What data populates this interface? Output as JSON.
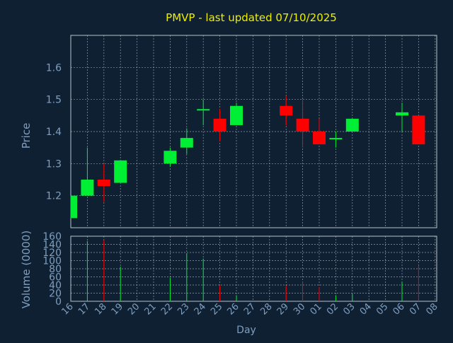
{
  "chart_data": [
    {
      "type": "candlestick",
      "title": "PMVP - last updated 07/10/2025",
      "ylabel": "Price",
      "ylim": [
        1.1,
        1.7
      ],
      "yticks": [
        1.2,
        1.3,
        1.4,
        1.5,
        1.6
      ],
      "grid": true,
      "x": [
        "16",
        "17",
        "18",
        "19",
        "20",
        "21",
        "22",
        "23",
        "24",
        "25",
        "26",
        "27",
        "28",
        "29",
        "30",
        "01",
        "02",
        "03",
        "04",
        "05",
        "06",
        "07",
        "08"
      ],
      "candles": [
        {
          "day": "16",
          "open": 1.13,
          "high": 1.2,
          "low": 1.13,
          "close": 1.2
        },
        {
          "day": "17",
          "open": 1.2,
          "high": 1.35,
          "low": 1.2,
          "close": 1.25
        },
        {
          "day": "18",
          "open": 1.25,
          "high": 1.3,
          "low": 1.18,
          "close": 1.23
        },
        {
          "day": "19",
          "open": 1.24,
          "high": 1.31,
          "low": 1.24,
          "close": 1.31
        },
        {
          "day": "22",
          "open": 1.3,
          "high": 1.35,
          "low": 1.29,
          "close": 1.34
        },
        {
          "day": "23",
          "open": 1.35,
          "high": 1.41,
          "low": 1.33,
          "close": 1.38
        },
        {
          "day": "24",
          "open": 1.47,
          "high": 1.5,
          "low": 1.42,
          "close": 1.47
        },
        {
          "day": "25",
          "open": 1.44,
          "high": 1.47,
          "low": 1.37,
          "close": 1.4
        },
        {
          "day": "26",
          "open": 1.42,
          "high": 1.49,
          "low": 1.42,
          "close": 1.48
        },
        {
          "day": "29",
          "open": 1.48,
          "high": 1.51,
          "low": 1.42,
          "close": 1.45
        },
        {
          "day": "30",
          "open": 1.44,
          "high": 1.5,
          "low": 1.35,
          "close": 1.4
        },
        {
          "day": "01",
          "open": 1.4,
          "high": 1.44,
          "low": 1.36,
          "close": 1.36
        },
        {
          "day": "02",
          "open": 1.38,
          "high": 1.4,
          "low": 1.35,
          "close": 1.38
        },
        {
          "day": "03",
          "open": 1.4,
          "high": 1.44,
          "low": 1.4,
          "close": 1.44
        },
        {
          "day": "06",
          "open": 1.45,
          "high": 1.49,
          "low": 1.4,
          "close": 1.46
        },
        {
          "day": "07",
          "open": 1.45,
          "high": 1.45,
          "low": 1.36,
          "close": 1.36
        }
      ],
      "colors": {
        "up": "#00ee33",
        "down": "#ff0000",
        "background": "#0f2033",
        "grid": "#b9c3cd",
        "text": "#7f9fbf",
        "title": "#eeee00"
      }
    },
    {
      "type": "bar",
      "ylabel": "Volume (0000)",
      "xlabel": "Day",
      "ylim": [
        0,
        160
      ],
      "yticks": [
        0,
        20,
        40,
        60,
        80,
        100,
        120,
        140,
        160
      ],
      "grid": true,
      "x": [
        "16",
        "17",
        "18",
        "19",
        "20",
        "21",
        "22",
        "23",
        "24",
        "25",
        "26",
        "27",
        "28",
        "29",
        "30",
        "01",
        "02",
        "03",
        "04",
        "05",
        "06",
        "07",
        "08"
      ],
      "volumes": [
        {
          "day": "17",
          "value": 148,
          "direction": "up"
        },
        {
          "day": "18",
          "value": 150,
          "direction": "down"
        },
        {
          "day": "19",
          "value": 85,
          "direction": "up"
        },
        {
          "day": "22",
          "value": 58,
          "direction": "up"
        },
        {
          "day": "23",
          "value": 118,
          "direction": "up"
        },
        {
          "day": "24",
          "value": 105,
          "direction": "up"
        },
        {
          "day": "25",
          "value": 40,
          "direction": "down"
        },
        {
          "day": "26",
          "value": 15,
          "direction": "up"
        },
        {
          "day": "29",
          "value": 38,
          "direction": "down"
        },
        {
          "day": "30",
          "value": 48,
          "direction": "down"
        },
        {
          "day": "01",
          "value": 35,
          "direction": "down"
        },
        {
          "day": "02",
          "value": 15,
          "direction": "up"
        },
        {
          "day": "03",
          "value": 18,
          "direction": "up"
        },
        {
          "day": "06",
          "value": 48,
          "direction": "up"
        },
        {
          "day": "07",
          "value": 88,
          "direction": "down"
        }
      ]
    }
  ]
}
